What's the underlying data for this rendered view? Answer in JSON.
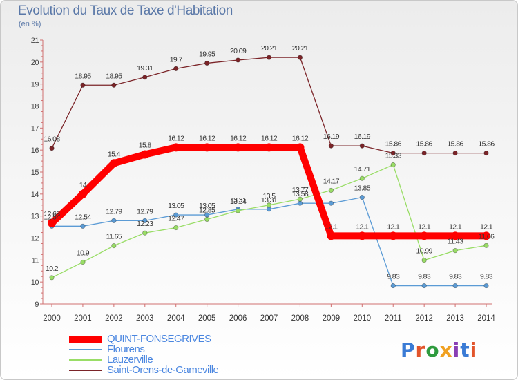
{
  "header": {
    "title": "Evolution du Taux de Taxe d'Habitation",
    "unit": "(en %)"
  },
  "logo": {
    "text": "Proxiti",
    "colors": [
      "#3a7bd5",
      "#e2542b",
      "#2e9b3e",
      "#f0a020",
      "#8a3fb5",
      "#3a7bd5",
      "#e2542b"
    ]
  },
  "chart_data": {
    "type": "line",
    "title": "Evolution du Taux de Taxe d'Habitation",
    "ylabel": "(en %)",
    "xlabel": "",
    "x": [
      "2000",
      "2001",
      "2002",
      "2003",
      "2004",
      "2005",
      "2006",
      "2007",
      "2008",
      "2009",
      "2010",
      "2011",
      "2012",
      "2013",
      "2014"
    ],
    "ylim": [
      9,
      21
    ],
    "yticks": [
      9,
      10,
      11,
      12,
      13,
      14,
      15,
      16,
      17,
      18,
      19,
      20,
      21
    ],
    "grid": false,
    "legend_position": "bottom-left",
    "series": [
      {
        "name": "QUINT-FONSEGRIVES",
        "color": "#ff0000",
        "values": [
          12.68,
          14,
          15.4,
          15.8,
          16.12,
          16.12,
          16.12,
          16.12,
          16.12,
          12.1,
          12.1,
          12.1,
          12.1,
          12.1,
          12.1
        ],
        "labels": [
          "12.68",
          "14",
          "15.4",
          "15.8",
          "16.12",
          "16.12",
          "16.12",
          "16.12",
          "16.12",
          "12.1",
          "12.1",
          "12.1",
          "12.1",
          "12.1",
          "12.1"
        ]
      },
      {
        "name": "Flourens",
        "color": "#5b9bd5",
        "values": [
          12.54,
          12.54,
          12.79,
          12.79,
          13.05,
          13.05,
          13.31,
          13.31,
          13.58,
          13.58,
          13.85,
          9.83,
          9.83,
          9.83,
          9.83
        ],
        "labels": [
          "12.54",
          "12.54",
          "12.79",
          "12.79",
          "13.05",
          "13.05",
          "13.31",
          "13.31",
          "13.58",
          "",
          "13.85",
          "9.83",
          "9.83",
          "9.83",
          "9.83"
        ]
      },
      {
        "name": "Lauzerville",
        "color": "#99dd66",
        "values": [
          10.2,
          10.9,
          11.65,
          12.23,
          12.47,
          12.85,
          13.24,
          13.5,
          13.77,
          14.17,
          14.71,
          15.33,
          10.99,
          11.43,
          11.66
        ],
        "labels": [
          "10.2",
          "10.9",
          "11.65",
          "12.23",
          "12.47",
          "12.85",
          "13.24",
          "13.5",
          "13.77",
          "14.17",
          "14.71",
          "15.33",
          "10.99",
          "11.43",
          "11.66"
        ]
      },
      {
        "name": "Saint-Orens-de-Gameville",
        "color": "#7b2428",
        "values": [
          16.08,
          18.95,
          18.95,
          19.31,
          19.7,
          19.95,
          20.09,
          20.21,
          20.21,
          16.19,
          16.19,
          15.86,
          15.86,
          15.86,
          15.86
        ],
        "labels": [
          "16.08",
          "18.95",
          "18.95",
          "19.31",
          "19.7",
          "19.95",
          "20.09",
          "20.21",
          "20.21",
          "16.19",
          "16.19",
          "15.86",
          "15.86",
          "15.86",
          "15.86"
        ]
      }
    ]
  }
}
